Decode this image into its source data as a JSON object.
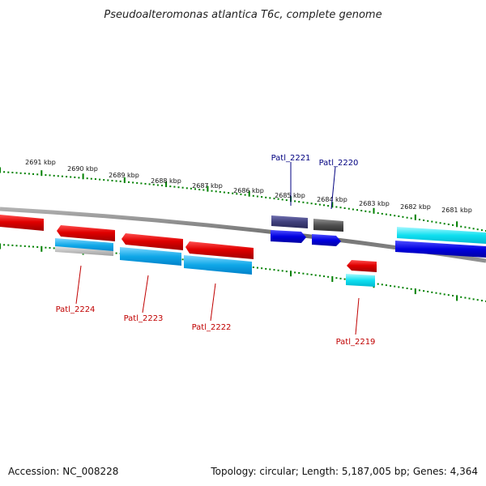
{
  "title": "Pseudoalteromonas atlantica T6c, complete genome",
  "footer": {
    "accession": "Accession: NC_008228",
    "topology": "Topology: circular; Length: 5,187,005 bp; Genes: 4,364"
  },
  "ticks": [
    {
      "label": "2691 kbp"
    },
    {
      "label": "2690 kbp"
    },
    {
      "label": "2689 kbp"
    },
    {
      "label": "2688 kbp"
    },
    {
      "label": "2687 kbp"
    },
    {
      "label": "2686 kbp"
    },
    {
      "label": "2685 kbp"
    },
    {
      "label": "2684 kbp"
    },
    {
      "label": "2683 kbp"
    },
    {
      "label": "2682 kbp"
    },
    {
      "label": "2681 kbp"
    }
  ],
  "gene_labels": [
    {
      "name": "Patl_2221",
      "color": "#000080"
    },
    {
      "name": "Patl_2220",
      "color": "#000080"
    },
    {
      "name": "Patl_2224",
      "color": "#c00000"
    },
    {
      "name": "Patl_2223",
      "color": "#c00000"
    },
    {
      "name": "Patl_2222",
      "color": "#c00000"
    },
    {
      "name": "Patl_2219",
      "color": "#c00000"
    }
  ],
  "colors": {
    "forward_gene": "#e01010",
    "cds": "#00aee8",
    "rna": "#00e8e8",
    "reverse_gene": "#1010e0",
    "pseudo": "#3c3c8c",
    "backbone": "#808080",
    "tick": "#008000"
  }
}
